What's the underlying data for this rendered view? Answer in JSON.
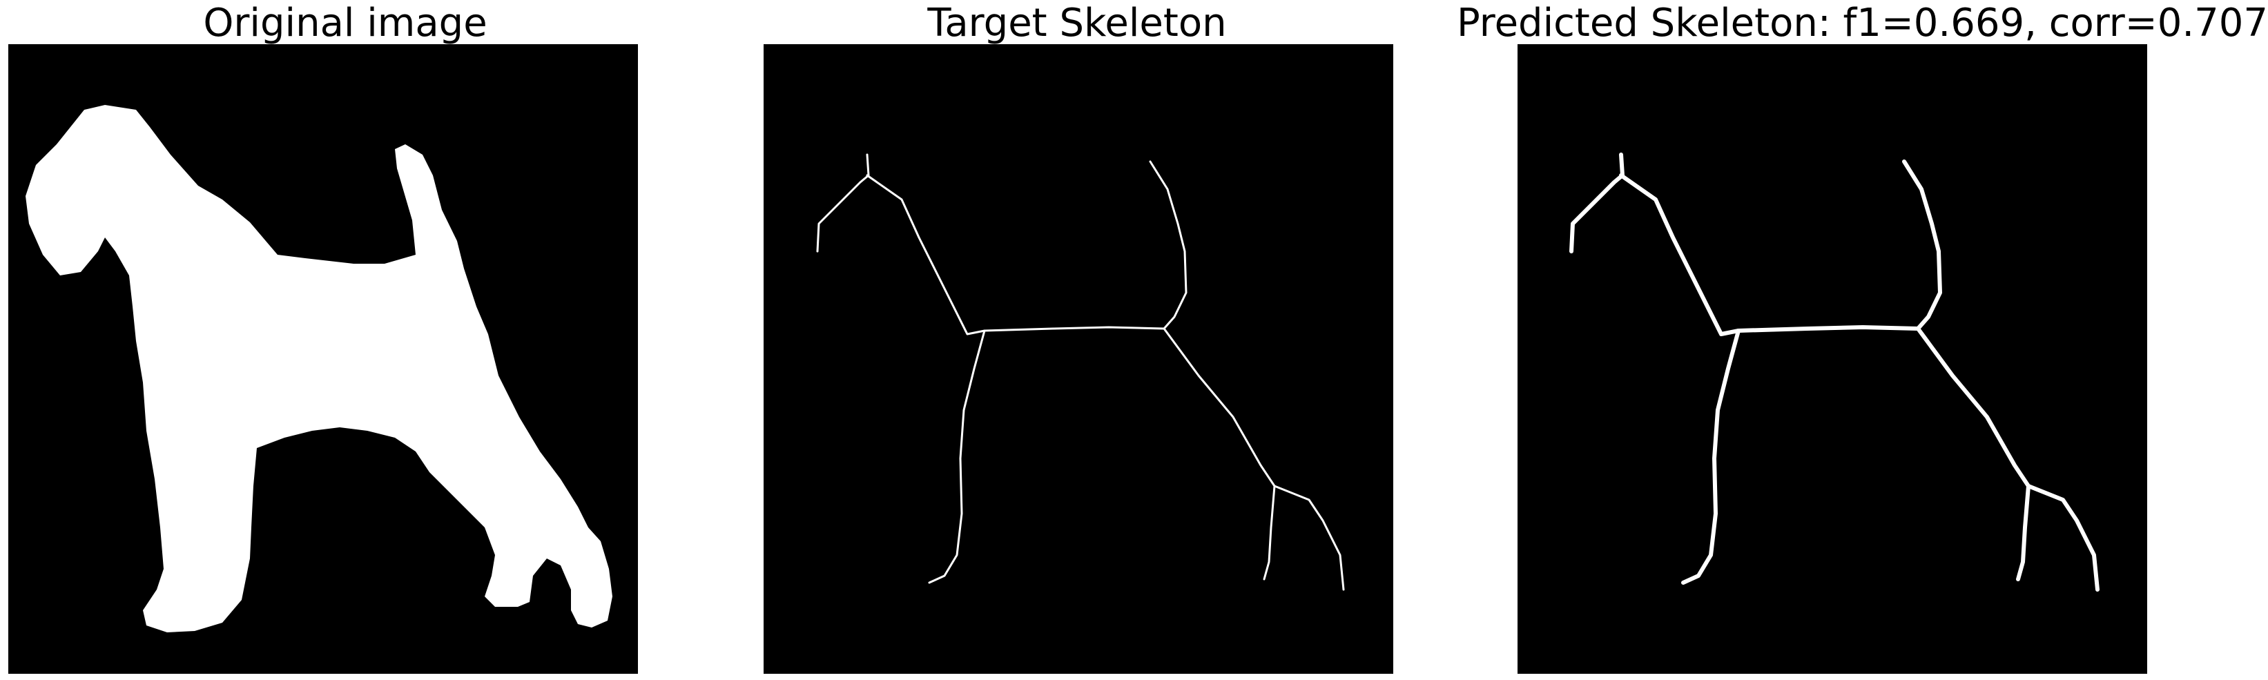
{
  "panels": [
    {
      "title": "Original image"
    },
    {
      "title": "Target Skeleton"
    },
    {
      "title": "Predicted Skeleton: f1=0.669, corr=0.707"
    }
  ],
  "colors": {
    "background": "#000000",
    "foreground": "#ffffff"
  }
}
